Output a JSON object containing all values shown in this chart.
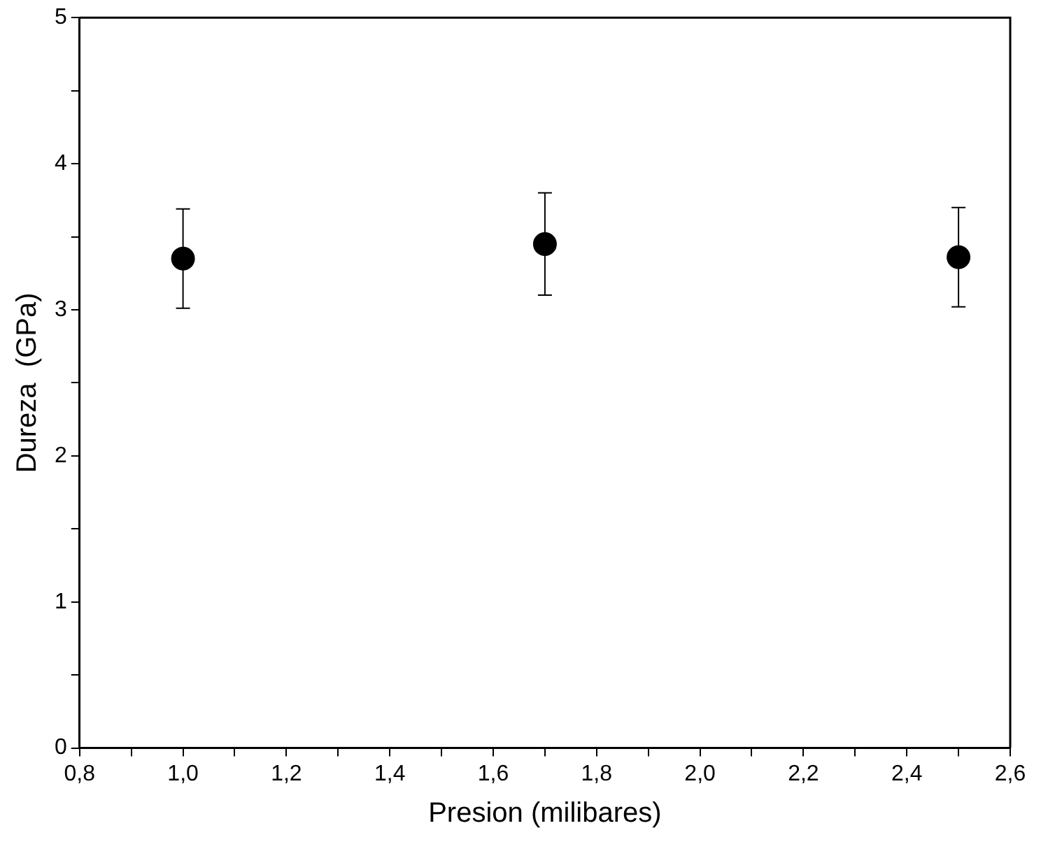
{
  "chart_data": {
    "type": "scatter",
    "xlabel": "Presion (milibares)",
    "ylabel": "Dureza  (GPa)",
    "x": [
      1.0,
      1.7,
      2.5
    ],
    "series": [
      {
        "color": "#000000",
        "values": [
          3.35,
          3.45,
          3.36
        ],
        "errors": [
          [
            3.01,
            3.69
          ],
          [
            3.1,
            3.8
          ],
          [
            3.02,
            3.7
          ]
        ]
      }
    ],
    "xlim": [
      0.8,
      2.6
    ],
    "xticks": [
      {
        "value": 0.8,
        "label": "0,8"
      },
      {
        "value": 0.9,
        "label": null
      },
      {
        "value": 1.0,
        "label": "1,0"
      },
      {
        "value": 1.1,
        "label": null
      },
      {
        "value": 1.2,
        "label": "1,2"
      },
      {
        "value": 1.3,
        "label": null
      },
      {
        "value": 1.4,
        "label": "1,4"
      },
      {
        "value": 1.5,
        "label": null
      },
      {
        "value": 1.6,
        "label": "1,6"
      },
      {
        "value": 1.7,
        "label": null
      },
      {
        "value": 1.8,
        "label": "1,8"
      },
      {
        "value": 1.9,
        "label": null
      },
      {
        "value": 2.0,
        "label": "2,0"
      },
      {
        "value": 2.1,
        "label": null
      },
      {
        "value": 2.2,
        "label": "2,2"
      },
      {
        "value": 2.3,
        "label": null
      },
      {
        "value": 2.4,
        "label": "2,4"
      },
      {
        "value": 2.5,
        "label": null
      },
      {
        "value": 2.6,
        "label": "2,6"
      }
    ],
    "ylim": [
      0,
      5
    ],
    "yticks": [
      0,
      {
        "value": 0.5,
        "label": null
      },
      1,
      {
        "value": 1.5,
        "label": null
      },
      2,
      {
        "value": 2.5,
        "label": null
      },
      3,
      {
        "value": 3.5,
        "label": null
      },
      4,
      {
        "value": 4.5,
        "label": null
      },
      5
    ],
    "grid": false,
    "legend": false,
    "marker": "circle"
  }
}
